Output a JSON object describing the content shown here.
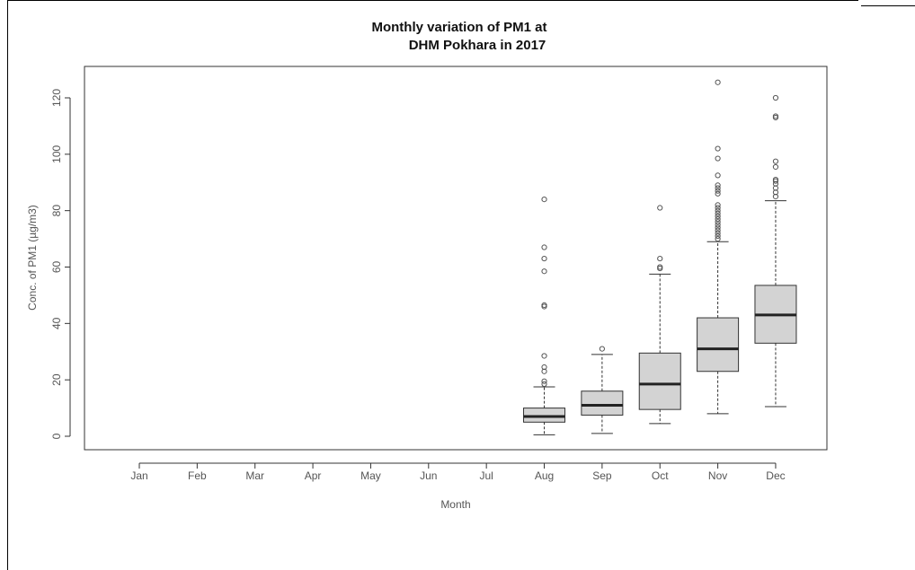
{
  "chart_data": {
    "type": "boxplot",
    "title_lines": [
      "Monthly variation of PM1 at",
      "DHM Pokhara in 2017"
    ],
    "xlabel": "Month",
    "ylabel": "Conc. of PM1 (µg/m3)",
    "ylim": [
      -5,
      130
    ],
    "y_ticks": [
      0,
      20,
      40,
      60,
      80,
      100,
      120
    ],
    "y_tick_labels": [
      "0",
      "20",
      "40",
      "60",
      "80",
      "100",
      "120"
    ],
    "categories": [
      "Jan",
      "Feb",
      "Mar",
      "Apr",
      "May",
      "Jun",
      "Jul",
      "Aug",
      "Sep",
      "Oct",
      "Nov",
      "Dec"
    ],
    "box_fill": "#d3d3d3",
    "boxes": [
      null,
      null,
      null,
      null,
      null,
      null,
      null,
      {
        "whisker_low": 0.5,
        "q1": 5,
        "median": 7,
        "q3": 10,
        "whisker_high": 17.5,
        "outliers": [
          18.5,
          19.5,
          23,
          24.5,
          28.5,
          46,
          46.5,
          58.5,
          63,
          67,
          84
        ]
      },
      {
        "whisker_low": 1,
        "q1": 7.5,
        "median": 11,
        "q3": 16,
        "whisker_high": 29,
        "outliers": [
          31
        ]
      },
      {
        "whisker_low": 4.5,
        "q1": 9.5,
        "median": 18.5,
        "q3": 29.5,
        "whisker_high": 57.5,
        "outliers": [
          59.5,
          60,
          63,
          81
        ]
      },
      {
        "whisker_low": 8,
        "q1": 23,
        "median": 31,
        "q3": 42,
        "whisker_high": 69,
        "outliers": [
          70,
          71,
          72,
          73,
          74,
          75,
          76,
          77,
          78,
          79,
          80,
          81,
          82,
          86,
          87,
          88,
          89,
          92.5,
          98.5,
          102,
          125.5
        ]
      },
      {
        "whisker_low": 10.5,
        "q1": 33,
        "median": 43,
        "q3": 53.5,
        "whisker_high": 83.5,
        "outliers": [
          85,
          86.5,
          88,
          89.5,
          90.5,
          91,
          95.5,
          97.5,
          113,
          113.5,
          120
        ]
      }
    ]
  }
}
